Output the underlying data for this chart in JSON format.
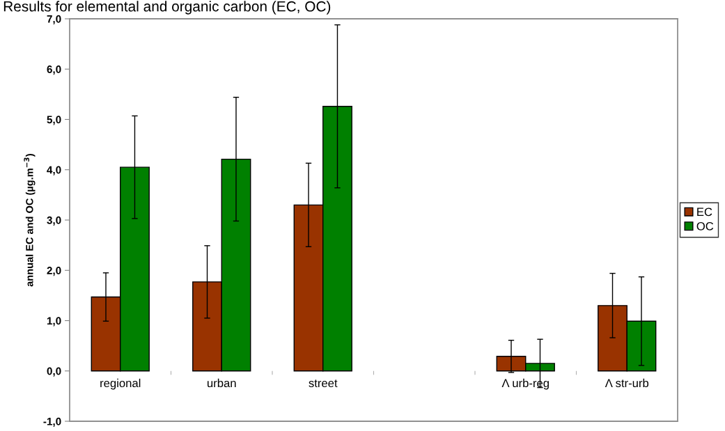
{
  "chart_data": {
    "type": "bar",
    "title": "Results for elemental and organic carbon (EC, OC)",
    "ylabel": "annual EC and OC (µg.m$^{−3}$)",
    "categories": [
      "regional",
      "urban",
      "street",
      null,
      "Λ urb-reg",
      "Λ str-urb"
    ],
    "series": [
      {
        "name": "EC",
        "color": "#993300",
        "values": [
          1.47,
          1.77,
          3.3,
          null,
          0.29,
          1.3
        ],
        "errors": [
          0.48,
          0.72,
          0.83,
          null,
          0.32,
          0.64
        ]
      },
      {
        "name": "OC",
        "color": "#008000",
        "values": [
          4.05,
          4.21,
          5.26,
          null,
          0.15,
          0.99
        ],
        "errors": [
          1.02,
          1.23,
          1.62,
          null,
          0.48,
          0.88
        ]
      }
    ],
    "ylim": [
      -1,
      7
    ],
    "yticks": [
      {
        "value": -1,
        "label": "-1,0"
      },
      {
        "value": 0,
        "label": "0,0"
      },
      {
        "value": 1,
        "label": "1,0"
      },
      {
        "value": 2,
        "label": "2,0"
      },
      {
        "value": 3,
        "label": "3,0"
      },
      {
        "value": 4,
        "label": "4,0"
      },
      {
        "value": 5,
        "label": "5,0"
      },
      {
        "value": 6,
        "label": "6,0"
      },
      {
        "value": 7,
        "label": "7,0"
      }
    ],
    "legend": "right"
  }
}
